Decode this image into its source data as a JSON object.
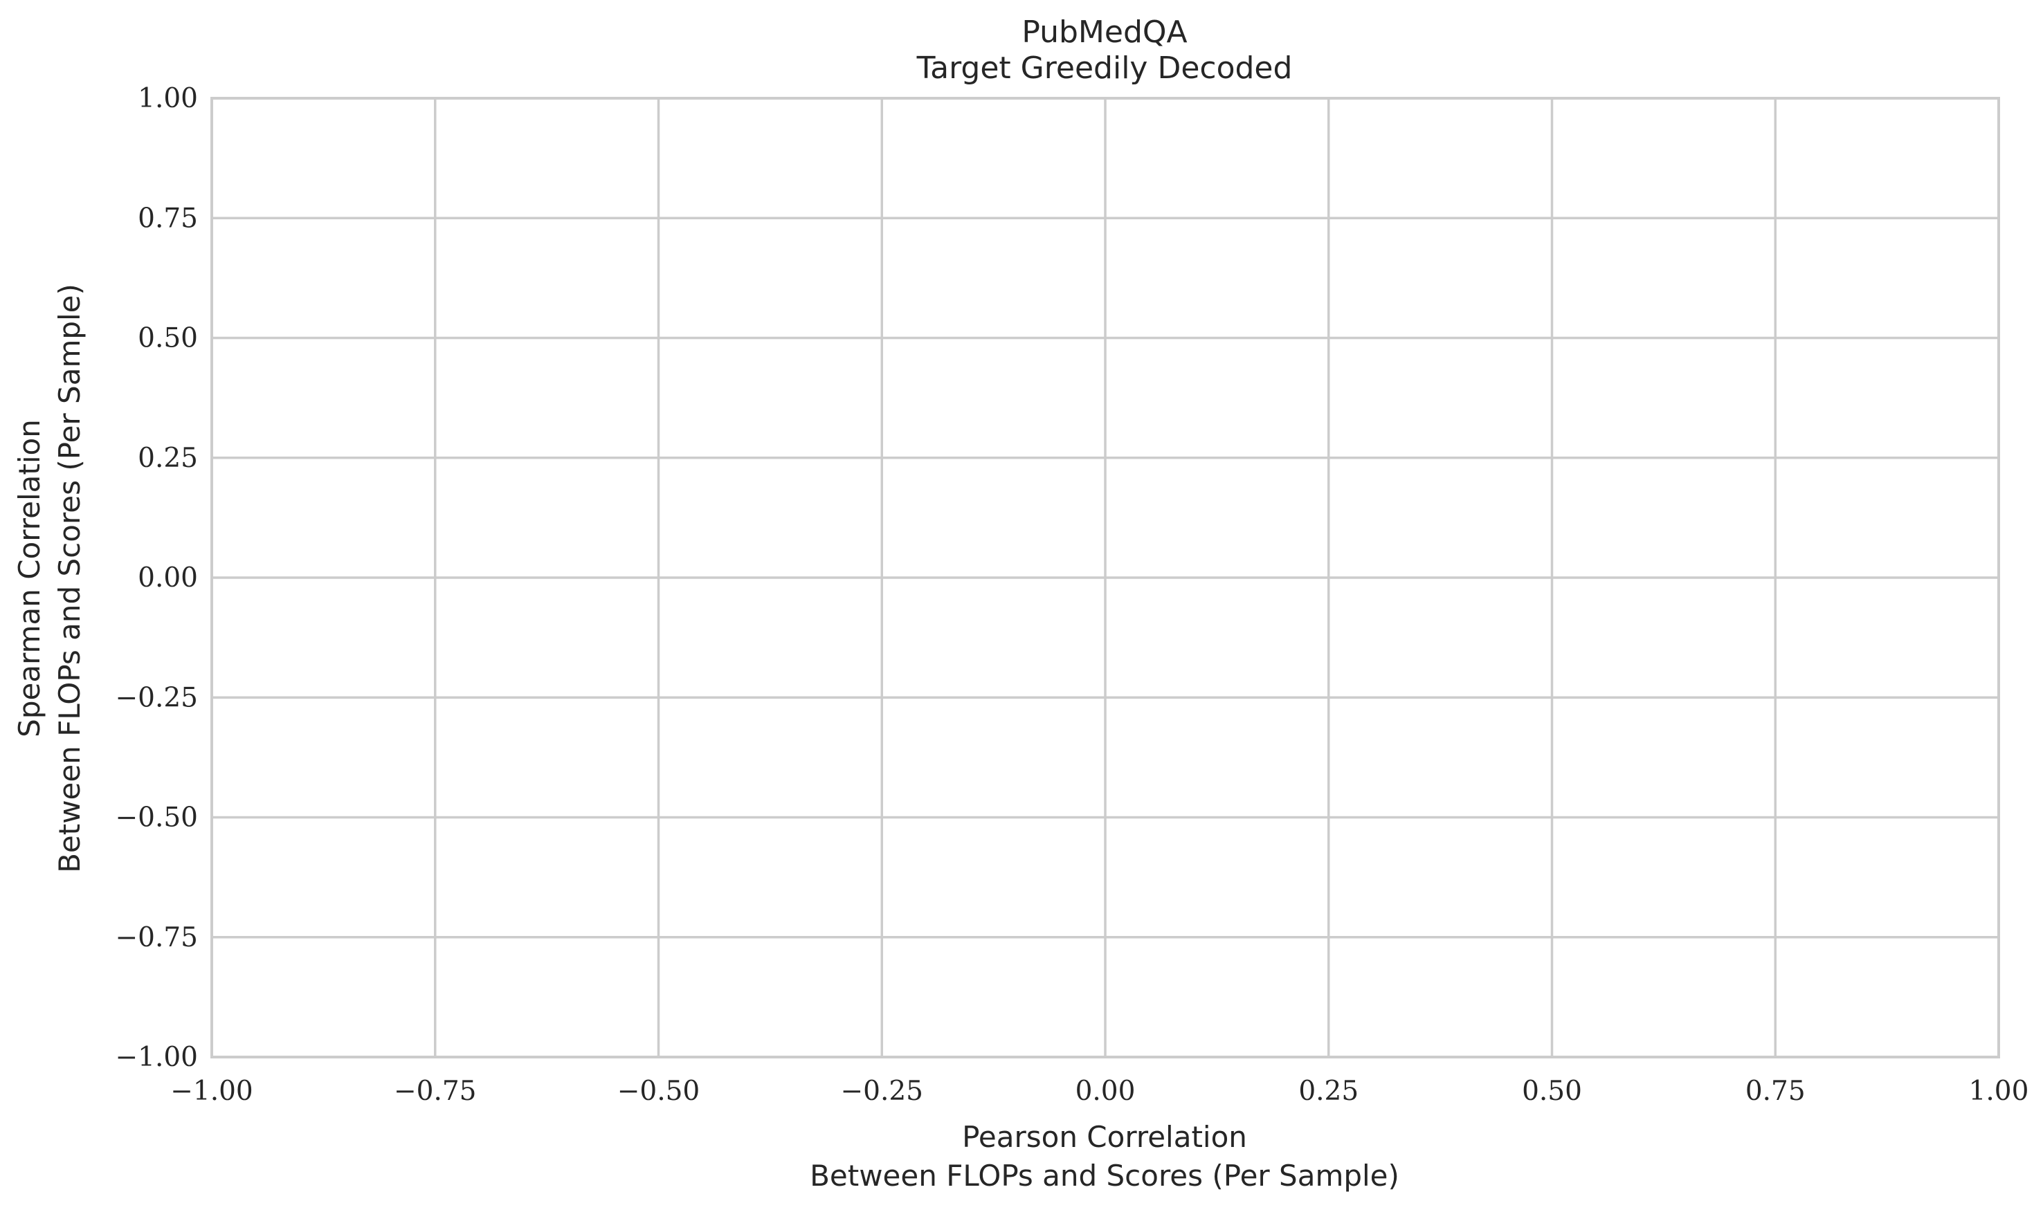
{
  "chart_data": {
    "type": "scatter",
    "title": "PubMedQA",
    "subtitle": "Target Greedily Decoded",
    "xlabel": [
      "Pearson Correlation",
      "Between FLOPs and Scores (Per Sample)"
    ],
    "ylabel": [
      "Spearman Correlation",
      "Between FLOPs and Scores (Per Sample)"
    ],
    "xlim": [
      -1.0,
      1.0
    ],
    "ylim": [
      -1.0,
      1.0
    ],
    "xticks": [
      -1.0,
      -0.75,
      -0.5,
      -0.25,
      0.0,
      0.25,
      0.5,
      0.75,
      1.0
    ],
    "yticks": [
      -1.0,
      -0.75,
      -0.5,
      -0.25,
      0.0,
      0.25,
      0.5,
      0.75,
      1.0
    ],
    "xtick_labels": [
      "−1.00",
      "−0.75",
      "−0.50",
      "−0.25",
      "0.00",
      "0.25",
      "0.50",
      "0.75",
      "1.00"
    ],
    "ytick_labels": [
      "−1.00",
      "−0.75",
      "−0.50",
      "−0.25",
      "0.00",
      "0.25",
      "0.50",
      "0.75",
      "1.00"
    ],
    "grid": true,
    "series": [],
    "colors": {
      "grid": "#cccccc",
      "text": "#262626",
      "background": "#ffffff"
    }
  }
}
